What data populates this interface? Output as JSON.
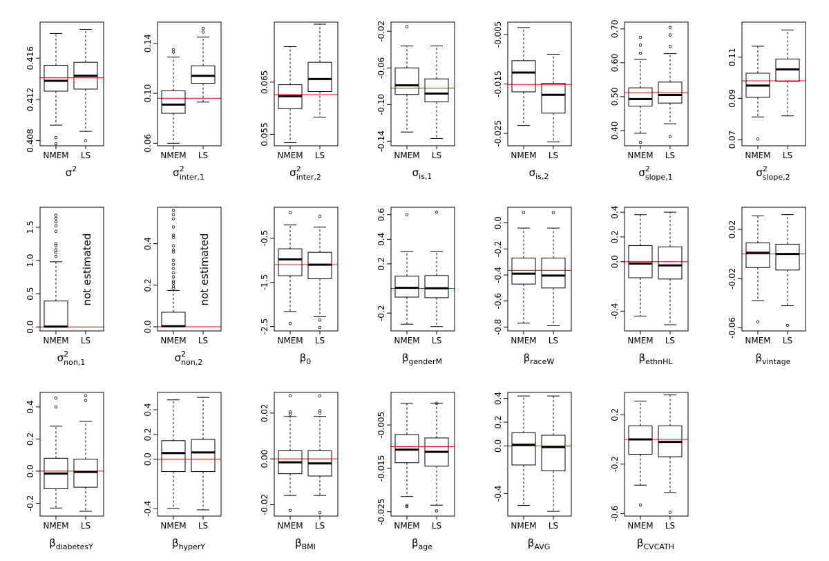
{
  "chart_data": [
    {
      "type": "boxplot",
      "title_base": "σ",
      "title_sup": "2",
      "title_sub": "",
      "categories": [
        "NMEM",
        "LS"
      ],
      "ylim": [
        0.4075,
        0.4195
      ],
      "yticks": [
        "0.408",
        "0.412",
        "0.416"
      ],
      "ref": 0.4141,
      "note": "",
      "boxes": [
        {
          "whislo": 0.4095,
          "q1": 0.4128,
          "med": 0.4138,
          "q3": 0.4153,
          "whishi": 0.4184,
          "outliers": [
            0.4083,
            0.4077
          ]
        },
        {
          "whislo": 0.4089,
          "q1": 0.413,
          "med": 0.4143,
          "q3": 0.4156,
          "whishi": 0.4188,
          "outliers": [
            0.408
          ]
        }
      ]
    },
    {
      "type": "boxplot",
      "title_base": "σ",
      "title_sup": "2",
      "title_sub": "inter,1",
      "categories": [
        "NMEM",
        "LS"
      ],
      "ylim": [
        0.058,
        0.157
      ],
      "yticks": [
        "0.06",
        "0.10",
        "0.14"
      ],
      "ref": 0.096,
      "note": "",
      "boxes": [
        {
          "whislo": 0.06,
          "q1": 0.084,
          "med": 0.091,
          "q3": 0.102,
          "whishi": 0.129,
          "outliers": [
            0.133,
            0.135
          ]
        },
        {
          "whislo": 0.093,
          "q1": 0.108,
          "med": 0.114,
          "q3": 0.122,
          "whishi": 0.145,
          "outliers": [
            0.149,
            0.152
          ]
        }
      ]
    },
    {
      "type": "boxplot",
      "title_base": "σ",
      "title_sup": "2",
      "title_sub": "inter,2",
      "categories": [
        "NMEM",
        "LS"
      ],
      "ylim": [
        0.0528,
        0.0765
      ],
      "yticks": [
        "0.055",
        "0.065"
      ],
      "ref": 0.0626,
      "note": "",
      "boxes": [
        {
          "whislo": 0.0534,
          "q1": 0.0599,
          "med": 0.0623,
          "q3": 0.0645,
          "whishi": 0.0718,
          "outliers": []
        },
        {
          "whislo": 0.0583,
          "q1": 0.0632,
          "med": 0.0656,
          "q3": 0.0688,
          "whishi": 0.0761,
          "outliers": []
        }
      ]
    },
    {
      "type": "boxplot",
      "title_base": "σ",
      "title_sup": "",
      "title_sub": "is,1",
      "categories": [
        "NMEM",
        "LS"
      ],
      "ylim": [
        -0.145,
        -0.01
      ],
      "yticks": [
        "-0.14",
        "-0.10",
        "-0.06",
        "-0.02"
      ],
      "ref": -0.082,
      "note": "",
      "boxes": [
        {
          "whislo": -0.13,
          "q1": -0.089,
          "med": -0.079,
          "q3": -0.06,
          "whishi": -0.036,
          "outliers": [
            -0.015
          ]
        },
        {
          "whislo": -0.137,
          "q1": -0.097,
          "med": -0.088,
          "q3": -0.072,
          "whishi": -0.036,
          "outliers": []
        }
      ]
    },
    {
      "type": "boxplot",
      "title_base": "σ",
      "title_sup": "",
      "title_sub": "is,2",
      "categories": [
        "NMEM",
        "LS"
      ],
      "ylim": [
        -0.0275,
        -0.0025
      ],
      "yticks": [
        "-0.025",
        "-0.015",
        "-0.005"
      ],
      "ref": -0.0151,
      "note": "",
      "boxes": [
        {
          "whislo": -0.0234,
          "q1": -0.0166,
          "med": -0.0127,
          "q3": -0.0103,
          "whishi": -0.0036,
          "outliers": []
        },
        {
          "whislo": -0.0267,
          "q1": -0.0209,
          "med": -0.0172,
          "q3": -0.0149,
          "whishi": -0.009,
          "outliers": []
        }
      ]
    },
    {
      "type": "boxplot",
      "title_base": "σ",
      "title_sup": "2",
      "title_sub": "slope,1",
      "categories": [
        "NMEM",
        "LS"
      ],
      "ylim": [
        0.355,
        0.72
      ],
      "yticks": [
        "0.40",
        "0.50",
        "0.60",
        "0.70"
      ],
      "ref": 0.512,
      "note": "",
      "boxes": [
        {
          "whislo": 0.392,
          "q1": 0.472,
          "med": 0.493,
          "q3": 0.526,
          "whishi": 0.61,
          "outliers": [
            0.628,
            0.652,
            0.675,
            0.365
          ]
        },
        {
          "whislo": 0.42,
          "q1": 0.481,
          "med": 0.505,
          "q3": 0.543,
          "whishi": 0.627,
          "outliers": [
            0.648,
            0.682,
            0.704,
            0.382
          ]
        }
      ]
    },
    {
      "type": "boxplot",
      "title_base": "σ",
      "title_sup": "2",
      "title_sub": "slope,2",
      "categories": [
        "NMEM",
        "LS"
      ],
      "ylim": [
        0.067,
        0.127
      ],
      "yticks": [
        "0.07",
        "0.09",
        "0.11"
      ],
      "ref": 0.0985,
      "note": "",
      "boxes": [
        {
          "whislo": 0.081,
          "q1": 0.0905,
          "med": 0.0962,
          "q3": 0.1022,
          "whishi": 0.1153,
          "outliers": [
            0.0703
          ]
        },
        {
          "whislo": 0.0815,
          "q1": 0.0983,
          "med": 0.1041,
          "q3": 0.1091,
          "whishi": 0.1232,
          "outliers": []
        }
      ]
    },
    {
      "type": "boxplot",
      "title_base": "σ",
      "title_sup": "2",
      "title_sub": "non,1",
      "categories": [
        "NMEM",
        "LS"
      ],
      "ylim": [
        -0.06,
        1.8
      ],
      "yticks": [
        "0.0",
        "0.5",
        "1.0",
        "1.5"
      ],
      "ref": 0.0,
      "note": "not estimated",
      "boxes": [
        {
          "whislo": 0.0,
          "q1": 0.0,
          "med": 0.005,
          "q3": 0.39,
          "whishi": 0.98,
          "outliers": [
            1.06,
            1.12,
            1.16,
            1.22,
            1.25,
            1.44,
            1.52,
            1.58,
            1.63,
            1.68
          ]
        },
        null
      ]
    },
    {
      "type": "boxplot",
      "title_base": "σ",
      "title_sup": "2",
      "title_sub": "non,2",
      "categories": [
        "NMEM",
        "LS"
      ],
      "ylim": [
        -0.02,
        0.575
      ],
      "yticks": [
        "0.0",
        "0.2",
        "0.4"
      ],
      "ref": 0.0,
      "note": "not estimated",
      "boxes": [
        {
          "whislo": 0.0,
          "q1": 0.0,
          "med": 0.003,
          "q3": 0.07,
          "whishi": 0.175,
          "outliers": [
            0.185,
            0.195,
            0.21,
            0.22,
            0.24,
            0.26,
            0.28,
            0.3,
            0.32,
            0.36,
            0.37,
            0.39,
            0.43,
            0.44,
            0.48,
            0.52,
            0.54,
            0.56
          ]
        },
        null
      ]
    },
    {
      "type": "boxplot",
      "title_base": "β",
      "title_sup": "",
      "title_sub": "0",
      "categories": [
        "NMEM",
        "LS"
      ],
      "ylim": [
        -2.6,
        0.2
      ],
      "yticks": [
        "-2.5",
        "-1.5",
        "-0.5"
      ],
      "ref": -1.1,
      "note": "",
      "boxes": [
        {
          "whislo": -2.16,
          "q1": -1.35,
          "med": -0.98,
          "q3": -0.74,
          "whishi": -0.2,
          "outliers": [
            0.08,
            -2.43
          ]
        },
        {
          "whislo": -2.28,
          "q1": -1.42,
          "med": -1.1,
          "q3": -0.82,
          "whishi": -0.25,
          "outliers": [
            0.0,
            -2.35,
            -2.52
          ]
        }
      ]
    },
    {
      "type": "boxplot",
      "title_base": "β",
      "title_sup": "",
      "title_sub": "genderM",
      "categories": [
        "NMEM",
        "LS"
      ],
      "ylim": [
        -0.345,
        0.66
      ],
      "yticks": [
        "-0.2",
        "0.2",
        "0.4",
        "0.6"
      ],
      "ref": 0.0,
      "note": "",
      "boxes": [
        {
          "whislo": -0.29,
          "q1": -0.07,
          "med": 0.005,
          "q3": 0.1,
          "whishi": 0.3,
          "outliers": [
            0.6
          ]
        },
        {
          "whislo": -0.31,
          "q1": -0.075,
          "med": 0.002,
          "q3": 0.105,
          "whishi": 0.3,
          "outliers": [
            0.62
          ]
        }
      ]
    },
    {
      "type": "boxplot",
      "title_base": "β",
      "title_sup": "",
      "title_sub": "raceW",
      "categories": [
        "NMEM",
        "LS"
      ],
      "ylim": [
        -0.83,
        0.12
      ],
      "yticks": [
        "-0.8",
        "-0.6",
        "-0.4",
        "-0.2",
        "0.0"
      ],
      "ref": -0.365,
      "note": "",
      "boxes": [
        {
          "whislo": -0.77,
          "q1": -0.47,
          "med": -0.39,
          "q3": -0.27,
          "whishi": -0.04,
          "outliers": [
            0.08
          ]
        },
        {
          "whislo": -0.79,
          "q1": -0.5,
          "med": -0.405,
          "q3": -0.27,
          "whishi": -0.04,
          "outliers": [
            0.08
          ]
        }
      ]
    },
    {
      "type": "boxplot",
      "title_base": "β",
      "title_sup": "",
      "title_sub": "ethnHL",
      "categories": [
        "NMEM",
        "LS"
      ],
      "ylim": [
        -0.56,
        0.44
      ],
      "yticks": [
        "-0.4",
        "0.0",
        "0.2",
        "0.4"
      ],
      "ref": 0.0,
      "note": "",
      "boxes": [
        {
          "whislo": -0.44,
          "q1": -0.13,
          "med": -0.015,
          "q3": 0.13,
          "whishi": 0.38,
          "outliers": []
        },
        {
          "whislo": -0.51,
          "q1": -0.14,
          "med": -0.03,
          "q3": 0.12,
          "whishi": 0.4,
          "outliers": []
        }
      ]
    },
    {
      "type": "boxplot",
      "title_base": "β",
      "title_sup": "",
      "title_sub": "vintage",
      "categories": [
        "NMEM",
        "LS"
      ],
      "ylim": [
        -0.0625,
        0.038
      ],
      "yticks": [
        "-0.06",
        "-0.02",
        "0.02"
      ],
      "ref": 0.0,
      "note": "",
      "boxes": [
        {
          "whislo": -0.038,
          "q1": -0.011,
          "med": 0.001,
          "q3": 0.009,
          "whishi": 0.031,
          "outliers": [
            -0.055
          ]
        },
        {
          "whislo": -0.042,
          "q1": -0.013,
          "med": 0.0,
          "q3": 0.008,
          "whishi": 0.032,
          "outliers": [
            -0.058
          ]
        }
      ]
    },
    {
      "type": "boxplot",
      "title_base": "β",
      "title_sup": "",
      "title_sub": "diabetesY",
      "categories": [
        "NMEM",
        "LS"
      ],
      "ylim": [
        -0.28,
        0.49
      ],
      "yticks": [
        "-0.2",
        "0.0",
        "0.2",
        "0.4"
      ],
      "ref": 0.0,
      "note": "",
      "boxes": [
        {
          "whislo": -0.23,
          "q1": -0.11,
          "med": -0.015,
          "q3": 0.08,
          "whishi": 0.28,
          "outliers": [
            0.4,
            0.455
          ]
        },
        {
          "whislo": -0.25,
          "q1": -0.1,
          "med": -0.005,
          "q3": 0.075,
          "whishi": 0.31,
          "outliers": [
            0.44,
            0.47
          ]
        }
      ]
    },
    {
      "type": "boxplot",
      "title_base": "β",
      "title_sup": "",
      "title_sub": "hyperY",
      "categories": [
        "NMEM",
        "LS"
      ],
      "ylim": [
        -0.46,
        0.54
      ],
      "yticks": [
        "-0.4",
        "0.0",
        "0.2",
        "0.4"
      ],
      "ref": 0.0,
      "note": "",
      "boxes": [
        {
          "whislo": -0.4,
          "q1": -0.1,
          "med": 0.05,
          "q3": 0.15,
          "whishi": 0.48,
          "outliers": []
        },
        {
          "whislo": -0.41,
          "q1": -0.1,
          "med": 0.055,
          "q3": 0.16,
          "whishi": 0.5,
          "outliers": []
        }
      ]
    },
    {
      "type": "boxplot",
      "title_base": "β",
      "title_sup": "",
      "title_sub": "BMI",
      "categories": [
        "NMEM",
        "LS"
      ],
      "ylim": [
        -0.025,
        0.029
      ],
      "yticks": [
        "-0.02",
        "0.00",
        "0.02"
      ],
      "ref": 0.0,
      "note": "",
      "boxes": [
        {
          "whislo": -0.016,
          "q1": -0.0065,
          "med": -0.0015,
          "q3": 0.0035,
          "whishi": 0.0185,
          "outliers": [
            0.0195,
            0.0205,
            0.0275,
            -0.0225
          ]
        },
        {
          "whislo": -0.016,
          "q1": -0.0075,
          "med": -0.002,
          "q3": 0.0035,
          "whishi": 0.0185,
          "outliers": [
            0.02,
            0.021,
            0.0275,
            -0.0235
          ]
        }
      ]
    },
    {
      "type": "boxplot",
      "title_base": "β",
      "title_sup": "",
      "title_sub": "age",
      "categories": [
        "NMEM",
        "LS"
      ],
      "ylim": [
        -0.026,
        0.0025
      ],
      "yticks": [
        "-0.025",
        "-0.015",
        "-0.005"
      ],
      "ref": -0.01,
      "note": "",
      "boxes": [
        {
          "whislo": -0.0215,
          "q1": -0.0137,
          "med": -0.0107,
          "q3": -0.0072,
          "whishi": 0.0,
          "outliers": [
            -0.0236,
            -0.0238
          ]
        },
        {
          "whislo": -0.0235,
          "q1": -0.0145,
          "med": -0.0112,
          "q3": -0.008,
          "whishi": 0.0,
          "outliers": [
            0.0,
            -0.0248
          ]
        }
      ]
    },
    {
      "type": "boxplot",
      "title_base": "β",
      "title_sup": "",
      "title_sub": "AVG",
      "categories": [
        "NMEM",
        "LS"
      ],
      "ylim": [
        -0.59,
        0.45
      ],
      "yticks": [
        "-0.4",
        "0.0",
        "0.2",
        "0.4"
      ],
      "ref": 0.0,
      "note": "",
      "boxes": [
        {
          "whislo": -0.5,
          "q1": -0.16,
          "med": 0.01,
          "q3": 0.11,
          "whishi": 0.42,
          "outliers": []
        },
        {
          "whislo": -0.55,
          "q1": -0.21,
          "med": -0.01,
          "q3": 0.09,
          "whishi": 0.42,
          "outliers": []
        }
      ]
    },
    {
      "type": "boxplot",
      "title_base": "β",
      "title_sup": "",
      "title_sub": "CVCATH",
      "categories": [
        "NMEM",
        "LS"
      ],
      "ylim": [
        -0.62,
        0.38
      ],
      "yticks": [
        "-0.6",
        "-0.2",
        "0.2"
      ],
      "ref": 0.0,
      "note": "",
      "boxes": [
        {
          "whislo": -0.37,
          "q1": -0.12,
          "med": 0.0,
          "q3": 0.11,
          "whishi": 0.31,
          "outliers": [
            -0.53
          ]
        },
        {
          "whislo": -0.43,
          "q1": -0.14,
          "med": -0.02,
          "q3": 0.11,
          "whishi": 0.36,
          "outliers": [
            -0.59
          ]
        }
      ]
    }
  ]
}
